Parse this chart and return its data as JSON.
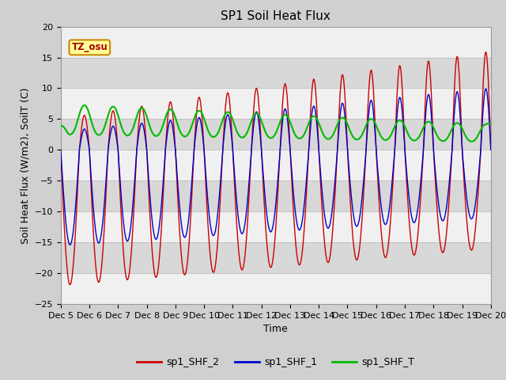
{
  "title": "SP1 Soil Heat Flux",
  "xlabel": "Time",
  "ylabel": "Soil Heat Flux (W/m2), SoilT (C)",
  "xlim_days": [
    5,
    20
  ],
  "ylim": [
    -25,
    20
  ],
  "yticks": [
    -25,
    -20,
    -15,
    -10,
    -5,
    0,
    5,
    10,
    15,
    20
  ],
  "xtick_labels": [
    "Dec 5",
    "Dec 6",
    "Dec 7",
    "Dec 8",
    "Dec 9",
    "Dec 10",
    "Dec 11",
    "Dec 12",
    "Dec 13",
    "Dec 14",
    "Dec 15",
    "Dec 16",
    "Dec 17",
    "Dec 18",
    "Dec 19",
    "Dec 20"
  ],
  "xtick_positions": [
    5,
    6,
    7,
    8,
    9,
    10,
    11,
    12,
    13,
    14,
    15,
    16,
    17,
    18,
    19,
    20
  ],
  "color_shf2": "#cc0000",
  "color_shf1": "#0000cc",
  "color_shft": "#00bb00",
  "legend_labels": [
    "sp1_SHF_2",
    "sp1_SHF_1",
    "sp1_SHF_T"
  ],
  "tz_label": "TZ_osu",
  "fig_facecolor": "#d0d0d0",
  "ax_facecolor": "#e8e8e8",
  "band_light": "#f0f0f0",
  "band_dark": "#d8d8d8",
  "title_fontsize": 11,
  "label_fontsize": 9,
  "tick_fontsize": 8
}
